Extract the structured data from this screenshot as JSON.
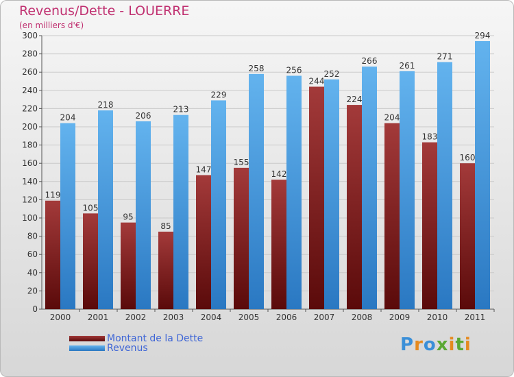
{
  "chart_data": {
    "type": "bar",
    "title": "Revenus/Dette - LOUERRE",
    "subtitle": "(en milliers d'€)",
    "xlabel": "",
    "ylabel": "",
    "categories": [
      "2000",
      "2001",
      "2002",
      "2003",
      "2004",
      "2005",
      "2006",
      "2007",
      "2008",
      "2009",
      "2010",
      "2011"
    ],
    "series": [
      {
        "name": "Montant de la Dette",
        "color": "#7a1515",
        "values": [
          119,
          105,
          95,
          85,
          147,
          155,
          142,
          244,
          224,
          204,
          183,
          160
        ]
      },
      {
        "name": "Revenus",
        "color": "#4aa0e6",
        "values": [
          204,
          218,
          206,
          213,
          229,
          258,
          256,
          252,
          266,
          261,
          271,
          294
        ]
      }
    ],
    "ylim": [
      0,
      300
    ],
    "yticks": [
      0,
      20,
      40,
      60,
      80,
      100,
      120,
      140,
      160,
      180,
      200,
      220,
      240,
      260,
      280,
      300
    ],
    "grid": true,
    "legend_position": "bottom-left"
  },
  "logo": {
    "text": "Proxiti",
    "colors": [
      "#3a8fd8",
      "#e58a1f",
      "#3a8fd8",
      "#5aa832",
      "#e58a1f",
      "#5aa832",
      "#e58a1f"
    ]
  }
}
